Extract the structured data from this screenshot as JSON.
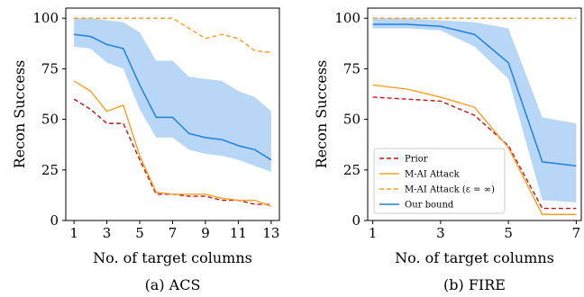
{
  "chart_data": [
    {
      "type": "line",
      "caption": "(a) ACS",
      "xlabel": "No. of target columns",
      "ylabel": "Recon Success",
      "xlim": [
        0.5,
        13.5
      ],
      "ylim": [
        0,
        105
      ],
      "xticks": [
        1,
        3,
        5,
        7,
        9,
        11,
        13
      ],
      "yticks": [
        0,
        25,
        50,
        75,
        100
      ],
      "x": [
        1,
        2,
        3,
        4,
        5,
        6,
        7,
        8,
        9,
        10,
        11,
        12,
        13
      ],
      "band": {
        "lower": [
          86,
          85,
          78,
          75,
          55,
          41,
          41,
          35,
          33,
          32,
          30,
          27,
          24
        ],
        "upper": [
          100,
          100,
          99,
          98,
          93,
          79,
          79,
          71,
          70,
          69,
          64,
          61,
          54
        ]
      },
      "series": [
        {
          "name": "Prior",
          "values": [
            60,
            55,
            48,
            48,
            30,
            13,
            13,
            12,
            12,
            10,
            10,
            8,
            8
          ]
        },
        {
          "name": "M-AI Attack",
          "values": [
            69,
            64,
            54,
            57,
            32,
            14,
            13,
            13,
            13,
            11,
            10,
            10,
            7
          ]
        },
        {
          "name": "M-AI Attack (ε = ∞)",
          "values": [
            100,
            100,
            100,
            100,
            100,
            100,
            100,
            95,
            90,
            92,
            90,
            84,
            83
          ]
        },
        {
          "name": "Our bound",
          "values": [
            92,
            91,
            87,
            85,
            67,
            51,
            51,
            43,
            41,
            40,
            37,
            35,
            30
          ]
        }
      ]
    },
    {
      "type": "line",
      "caption": "(b) FIRE",
      "xlabel": "No. of target columns",
      "ylabel": "Recon Success",
      "xlim": [
        0.85,
        7.15
      ],
      "ylim": [
        0,
        105
      ],
      "xticks": [
        1,
        3,
        5,
        7
      ],
      "yticks": [
        0,
        25,
        50,
        75,
        100
      ],
      "x": [
        1,
        2,
        3,
        4,
        5,
        6,
        7
      ],
      "band": {
        "lower": [
          95,
          95,
          94,
          86,
          70,
          10,
          9
        ],
        "upper": [
          100,
          100,
          99,
          98,
          95,
          51,
          48
        ]
      },
      "series": [
        {
          "name": "Prior",
          "values": [
            61,
            60,
            59,
            52,
            37,
            6,
            6
          ]
        },
        {
          "name": "M-AI Attack",
          "values": [
            67,
            65,
            61,
            56,
            36,
            3,
            3
          ]
        },
        {
          "name": "M-AI Attack (ε = ∞)",
          "values": [
            100,
            100,
            100,
            100,
            100,
            100,
            100
          ]
        },
        {
          "name": "Our bound",
          "values": [
            97,
            97,
            96,
            92,
            78,
            29,
            27
          ]
        }
      ],
      "legend": {
        "position": "lower-left",
        "entries": [
          "Prior",
          "M-AI Attack",
          "M-AI Attack (ε = ∞)",
          "Our bound"
        ]
      }
    }
  ],
  "colors": {
    "prior": "#c41414",
    "attack": "#f7a024",
    "attack_inf": "#f7a024",
    "bound": "#1f80dc",
    "band": "#b8d7f6"
  }
}
